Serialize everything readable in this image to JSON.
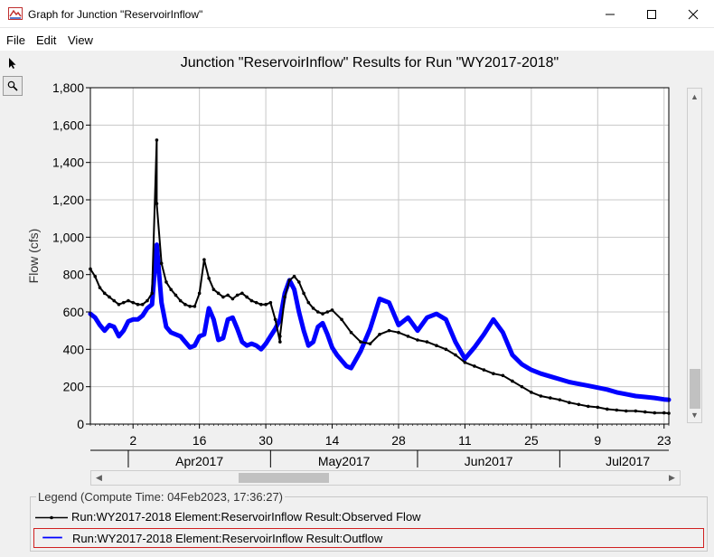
{
  "window": {
    "title": "Graph for Junction \"ReservoirInflow\"",
    "buttons": {
      "minimize": "—",
      "maximize": "☐",
      "close": "✕"
    }
  },
  "menu": {
    "file": "File",
    "edit": "Edit",
    "view": "View"
  },
  "tools": [
    "arrow-pointer-icon",
    "magnifier-icon"
  ],
  "chart": {
    "title": "Junction \"ReservoirInflow\" Results for Run \"WY2017-2018\""
  },
  "legend": {
    "title": "Legend (Compute Time: 04Feb2023, 17:36:27)",
    "items": [
      {
        "label": "Run:WY2017-2018 Element:ReservoirInflow Result:Observed Flow",
        "color": "#000000"
      },
      {
        "label": "Run:WY2017-2018 Element:ReservoirInflow Result:Outflow",
        "color": "#0000ff"
      }
    ]
  },
  "chart_data": {
    "type": "line",
    "title": "Junction \"ReservoirInflow\" Results for Run \"WY2017-2018\"",
    "xlabel": "",
    "ylabel": "Flow (cfs)",
    "ylim": [
      0,
      1800
    ],
    "yticks": [
      0,
      200,
      400,
      600,
      800,
      "1,000",
      "1,200",
      "1,400",
      "1,600",
      "1,800"
    ],
    "xlim": [
      "2017-03-24",
      "2017-07-24"
    ],
    "xticks": [
      {
        "date": "2017-04-02",
        "label": "2"
      },
      {
        "date": "2017-04-16",
        "label": "16"
      },
      {
        "date": "2017-04-30",
        "label": "30"
      },
      {
        "date": "2017-05-14",
        "label": "14"
      },
      {
        "date": "2017-05-28",
        "label": "28"
      },
      {
        "date": "2017-06-11",
        "label": "11"
      },
      {
        "date": "2017-06-25",
        "label": "25"
      },
      {
        "date": "2017-07-09",
        "label": "9"
      },
      {
        "date": "2017-07-23",
        "label": "23"
      }
    ],
    "months": [
      {
        "date": "2017-04-01",
        "label": "Apr2017"
      },
      {
        "date": "2017-05-01",
        "label": "May2017"
      },
      {
        "date": "2017-06-01",
        "label": "Jun2017"
      },
      {
        "date": "2017-07-01",
        "label": "Jul2017"
      }
    ],
    "grid": true,
    "series": [
      {
        "name": "Run:WY2017-2018 Element:ReservoirInflow Result:Observed Flow",
        "color": "#000000",
        "marker": "dot",
        "x": [
          "2017-03-24",
          "2017-03-25",
          "2017-03-26",
          "2017-03-27",
          "2017-03-28",
          "2017-03-29",
          "2017-03-30",
          "2017-03-31",
          "2017-04-01",
          "2017-04-02",
          "2017-04-03",
          "2017-04-04",
          "2017-04-05",
          "2017-04-06",
          "2017-04-07",
          "2017-04-07",
          "2017-04-08",
          "2017-04-09",
          "2017-04-10",
          "2017-04-11",
          "2017-04-12",
          "2017-04-13",
          "2017-04-14",
          "2017-04-15",
          "2017-04-16",
          "2017-04-17",
          "2017-04-18",
          "2017-04-19",
          "2017-04-20",
          "2017-04-21",
          "2017-04-22",
          "2017-04-23",
          "2017-04-24",
          "2017-04-25",
          "2017-04-26",
          "2017-04-27",
          "2017-04-28",
          "2017-04-29",
          "2017-04-30",
          "2017-05-01",
          "2017-05-02",
          "2017-05-03",
          "2017-05-03",
          "2017-05-04",
          "2017-05-05",
          "2017-05-06",
          "2017-05-07",
          "2017-05-08",
          "2017-05-09",
          "2017-05-10",
          "2017-05-11",
          "2017-05-12",
          "2017-05-13",
          "2017-05-14",
          "2017-05-16",
          "2017-05-18",
          "2017-05-20",
          "2017-05-22",
          "2017-05-24",
          "2017-05-26",
          "2017-05-28",
          "2017-05-30",
          "2017-06-01",
          "2017-06-03",
          "2017-06-05",
          "2017-06-07",
          "2017-06-09",
          "2017-06-11",
          "2017-06-13",
          "2017-06-15",
          "2017-06-17",
          "2017-06-19",
          "2017-06-21",
          "2017-06-23",
          "2017-06-25",
          "2017-06-27",
          "2017-06-29",
          "2017-07-01",
          "2017-07-03",
          "2017-07-05",
          "2017-07-07",
          "2017-07-09",
          "2017-07-11",
          "2017-07-13",
          "2017-07-15",
          "2017-07-17",
          "2017-07-19",
          "2017-07-21",
          "2017-07-23",
          "2017-07-24"
        ],
        "y": [
          830,
          790,
          730,
          700,
          680,
          660,
          640,
          650,
          660,
          650,
          640,
          640,
          660,
          700,
          1520,
          1180,
          860,
          760,
          720,
          690,
          660,
          640,
          630,
          630,
          700,
          880,
          780,
          720,
          700,
          680,
          690,
          670,
          690,
          700,
          680,
          660,
          650,
          640,
          640,
          650,
          560,
          440,
          470,
          680,
          770,
          790,
          760,
          700,
          650,
          620,
          600,
          590,
          600,
          610,
          560,
          490,
          440,
          430,
          480,
          500,
          490,
          470,
          450,
          440,
          420,
          400,
          370,
          330,
          310,
          290,
          270,
          260,
          230,
          200,
          170,
          150,
          140,
          130,
          115,
          105,
          95,
          90,
          80,
          75,
          70,
          70,
          65,
          60,
          60,
          58
        ]
      },
      {
        "name": "Run:WY2017-2018 Element:ReservoirInflow Result:Outflow",
        "color": "#0000ff",
        "marker": "none",
        "x": [
          "2017-03-24",
          "2017-03-25",
          "2017-03-26",
          "2017-03-27",
          "2017-03-28",
          "2017-03-29",
          "2017-03-30",
          "2017-03-31",
          "2017-04-01",
          "2017-04-02",
          "2017-04-03",
          "2017-04-04",
          "2017-04-05",
          "2017-04-06",
          "2017-04-07",
          "2017-04-08",
          "2017-04-09",
          "2017-04-10",
          "2017-04-11",
          "2017-04-12",
          "2017-04-13",
          "2017-04-14",
          "2017-04-15",
          "2017-04-16",
          "2017-04-17",
          "2017-04-18",
          "2017-04-19",
          "2017-04-20",
          "2017-04-21",
          "2017-04-22",
          "2017-04-23",
          "2017-04-24",
          "2017-04-25",
          "2017-04-26",
          "2017-04-27",
          "2017-04-28",
          "2017-04-29",
          "2017-04-30",
          "2017-05-01",
          "2017-05-02",
          "2017-05-03",
          "2017-05-04",
          "2017-05-05",
          "2017-05-06",
          "2017-05-07",
          "2017-05-08",
          "2017-05-09",
          "2017-05-10",
          "2017-05-11",
          "2017-05-12",
          "2017-05-13",
          "2017-05-14",
          "2017-05-15",
          "2017-05-16",
          "2017-05-17",
          "2017-05-18",
          "2017-05-20",
          "2017-05-22",
          "2017-05-24",
          "2017-05-26",
          "2017-05-28",
          "2017-05-30",
          "2017-06-01",
          "2017-06-03",
          "2017-06-05",
          "2017-06-07",
          "2017-06-09",
          "2017-06-11",
          "2017-06-13",
          "2017-06-15",
          "2017-06-17",
          "2017-06-19",
          "2017-06-21",
          "2017-06-23",
          "2017-06-25",
          "2017-06-27",
          "2017-06-29",
          "2017-07-01",
          "2017-07-03",
          "2017-07-05",
          "2017-07-07",
          "2017-07-09",
          "2017-07-11",
          "2017-07-13",
          "2017-07-15",
          "2017-07-17",
          "2017-07-19",
          "2017-07-21",
          "2017-07-23",
          "2017-07-24"
        ],
        "y": [
          590,
          570,
          530,
          500,
          530,
          520,
          470,
          500,
          550,
          560,
          560,
          580,
          620,
          640,
          960,
          650,
          520,
          490,
          480,
          470,
          440,
          410,
          420,
          470,
          480,
          620,
          560,
          450,
          460,
          560,
          570,
          510,
          440,
          420,
          430,
          420,
          400,
          430,
          470,
          510,
          560,
          700,
          770,
          720,
          600,
          500,
          420,
          440,
          520,
          540,
          480,
          410,
          370,
          340,
          310,
          300,
          390,
          510,
          670,
          650,
          530,
          570,
          500,
          570,
          590,
          560,
          440,
          350,
          410,
          480,
          560,
          490,
          370,
          320,
          290,
          270,
          255,
          240,
          225,
          215,
          205,
          195,
          185,
          170,
          160,
          150,
          145,
          140,
          132,
          130
        ]
      }
    ]
  }
}
